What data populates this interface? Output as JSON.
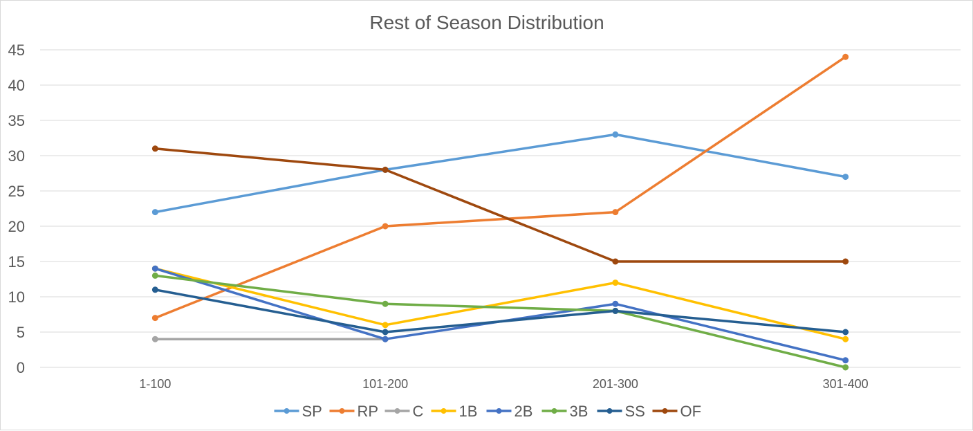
{
  "chart_data": {
    "type": "line",
    "title": "Rest of Season Distribution",
    "xlabel": "",
    "ylabel": "",
    "categories": [
      "1-100",
      "101-200",
      "201-300",
      "301-400"
    ],
    "ylim": [
      0,
      45
    ],
    "yticks": [
      0,
      5,
      10,
      15,
      20,
      25,
      30,
      35,
      40,
      45
    ],
    "grid": true,
    "legend": "bottom",
    "series": [
      {
        "name": "SP",
        "color": "#5B9BD5",
        "values": [
          22,
          28,
          33,
          27
        ]
      },
      {
        "name": "RP",
        "color": "#ED7D31",
        "values": [
          7,
          20,
          22,
          44
        ]
      },
      {
        "name": "C",
        "color": "#A5A5A5",
        "values": [
          4,
          4,
          null,
          null
        ]
      },
      {
        "name": "1B",
        "color": "#FFC000",
        "values": [
          14,
          6,
          12,
          4
        ]
      },
      {
        "name": "2B",
        "color": "#4472C4",
        "values": [
          14,
          4,
          9,
          1
        ]
      },
      {
        "name": "3B",
        "color": "#70AD47",
        "values": [
          13,
          9,
          8,
          0
        ]
      },
      {
        "name": "SS",
        "color": "#255E91",
        "values": [
          11,
          5,
          8,
          5
        ]
      },
      {
        "name": "OF",
        "color": "#9E480E",
        "values": [
          31,
          28,
          15,
          15
        ]
      }
    ]
  }
}
